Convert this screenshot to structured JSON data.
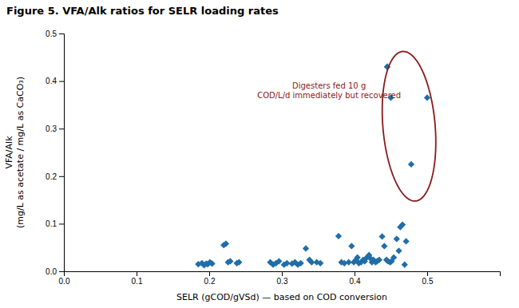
{
  "chart_data": {
    "type": "scatter",
    "title": "Figure 5.  VFA/Alk ratios for SELR loading rates",
    "xlabel": "SELR (gCOD/gVSd) — based on COD conversion",
    "ylabel": "VFA/Alk\n(mg/L as acetate / mg/L as CaCO₃)",
    "x": [
      0.185,
      0.19,
      0.193,
      0.196,
      0.198,
      0.201,
      0.204,
      0.22,
      0.223,
      0.226,
      0.229,
      0.238,
      0.241,
      0.284,
      0.288,
      0.292,
      0.296,
      0.303,
      0.307,
      0.314,
      0.318,
      0.322,
      0.326,
      0.333,
      0.338,
      0.341,
      0.348,
      0.353,
      0.378,
      0.382,
      0.386,
      0.392,
      0.396,
      0.399,
      0.402,
      0.404,
      0.406,
      0.409,
      0.412,
      0.414,
      0.417,
      0.42,
      0.422,
      0.424,
      0.426,
      0.429,
      0.431,
      0.434,
      0.438,
      0.441,
      0.444,
      0.446,
      0.449,
      0.451,
      0.454,
      0.458,
      0.461,
      0.463,
      0.466,
      0.469,
      0.471,
      0.445,
      0.5,
      0.445,
      0.478,
      0.45
    ],
    "y": [
      0.015,
      0.017,
      0.013,
      0.016,
      0.015,
      0.019,
      0.016,
      0.055,
      0.058,
      0.019,
      0.021,
      0.017,
      0.019,
      0.019,
      0.014,
      0.017,
      0.021,
      0.014,
      0.017,
      0.016,
      0.019,
      0.014,
      0.017,
      0.048,
      0.024,
      0.019,
      0.019,
      0.017,
      0.074,
      0.019,
      0.017,
      0.019,
      0.053,
      0.019,
      0.024,
      0.029,
      0.017,
      0.019,
      0.024,
      0.021,
      0.029,
      0.034,
      0.027,
      0.019,
      0.024,
      0.019,
      0.021,
      0.024,
      0.073,
      0.053,
      0.024,
      0.021,
      0.019,
      0.021,
      0.029,
      0.068,
      0.043,
      0.093,
      0.098,
      0.014,
      0.063,
      0.43,
      0.365,
      0.43,
      0.225,
      0.365
    ],
    "color": "#1f6eaa",
    "marker": "diamond",
    "xlim": [
      0,
      0.6
    ],
    "ylim": [
      0,
      0.5
    ],
    "xticks": [
      {
        "value": 0,
        "label": "0.0"
      },
      0.1,
      0.2,
      0.3,
      0.4,
      0.5
    ],
    "yticks": [
      {
        "value": 0,
        "label": "0.0"
      },
      0.1,
      0.2,
      0.3,
      0.4,
      0.5
    ],
    "grid": false,
    "annotations": [
      {
        "text": "Digesters fed 10 g\nCOD/L/d immediately but recovered",
        "x": 0.365,
        "y": 0.38,
        "color": "#8b1a1a"
      }
    ],
    "ellipse": {
      "cx": 0.475,
      "cy": 0.305,
      "width": 0.072,
      "height": 0.315,
      "angle": 3,
      "color": "#8b1a1a"
    }
  }
}
